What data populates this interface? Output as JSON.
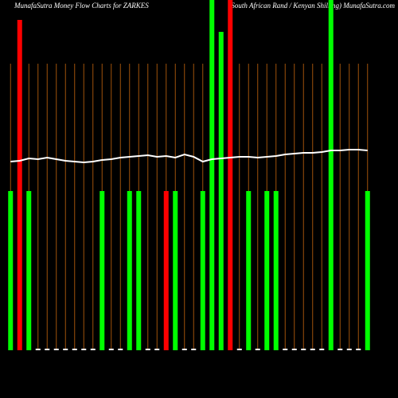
{
  "chart_data": {
    "type": "bar",
    "title": "MunafaSutra  Money Flow  Charts for ZARKES",
    "subtitle": "(South African  Rand / Kenyan  Shilling) MunafaSutra.com",
    "categories": [
      null,
      null,
      null,
      null,
      null,
      null,
      null,
      null,
      null,
      null,
      null,
      null,
      null,
      null,
      null,
      null,
      null,
      null,
      null,
      null,
      null,
      null,
      null,
      null,
      null,
      null,
      null,
      null,
      null,
      null,
      null,
      null,
      null,
      null,
      null,
      null,
      null,
      null,
      null,
      null
    ],
    "values": [
      200,
      415,
      200,
      2,
      2,
      2,
      2,
      2,
      2,
      2,
      200,
      2,
      2,
      200,
      200,
      2,
      2,
      200,
      200,
      2,
      2,
      200,
      440,
      400,
      440,
      2,
      200,
      2,
      200,
      200,
      2,
      2,
      2,
      2,
      2,
      440,
      2,
      2,
      2,
      200
    ],
    "colors": [
      "#00ff00",
      "#ff0000",
      "#00ff00",
      "#ffffff",
      "#ffffff",
      "#ffffff",
      "#ffffff",
      "#ffffff",
      "#ffffff",
      "#ffffff",
      "#00ff00",
      "#ffffff",
      "#ffffff",
      "#00ff00",
      "#00ff00",
      "#ffffff",
      "#ffffff",
      "#ff0000",
      "#00ff00",
      "#ffffff",
      "#ffffff",
      "#00ff00",
      "#00ff00",
      "#00ff00",
      "#ff0000",
      "#ffffff",
      "#00ff00",
      "#ffffff",
      "#00ff00",
      "#00ff00",
      "#ffffff",
      "#ffffff",
      "#ffffff",
      "#ffffff",
      "#ffffff",
      "#00ff00",
      "#ffffff",
      "#ffffff",
      "#ffffff",
      "#00ff00"
    ],
    "line": {
      "color": "#ffffff",
      "values": [
        237,
        238,
        241,
        240,
        242,
        240,
        238,
        237,
        236,
        237,
        239,
        240,
        242,
        243,
        244,
        245,
        243,
        244,
        242,
        246,
        243,
        237,
        240,
        241,
        242,
        243,
        243,
        242,
        243,
        244,
        246,
        247,
        248,
        248,
        249,
        251,
        251,
        252,
        252,
        251
      ]
    },
    "ylim": [
      0,
      440
    ]
  }
}
